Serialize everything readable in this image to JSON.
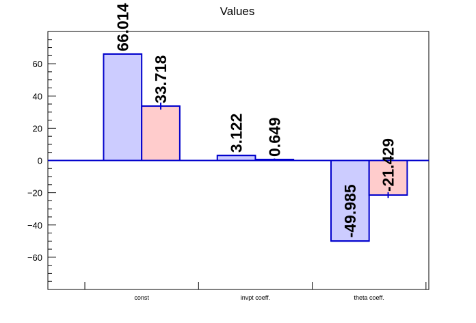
{
  "chart_data": {
    "type": "bar",
    "title": "Values",
    "categories": [
      "const",
      "invpt coeff.",
      "theta coeff."
    ],
    "series": [
      {
        "values": [
          66.014,
          3.122,
          -49.985
        ],
        "labels": [
          "66.014",
          "3.122",
          "-49.985"
        ],
        "errors": [
          0,
          0,
          0
        ],
        "fill": "#ccccff",
        "stroke": "#0000cc"
      },
      {
        "values": [
          33.718,
          0.649,
          -21.429
        ],
        "labels": [
          "33.718",
          "0.649",
          "-21.429"
        ],
        "errors": [
          2.2,
          0.6,
          1.8
        ],
        "fill": "#ffcccc",
        "stroke": "#0000cc"
      }
    ],
    "ylim": [
      -80,
      80
    ],
    "yticks": [
      -60,
      -40,
      -20,
      0,
      20,
      40,
      60
    ],
    "ytick_labels": [
      "−60",
      "−40",
      "−20",
      "0",
      "20",
      "40",
      "60"
    ],
    "grid": false
  }
}
